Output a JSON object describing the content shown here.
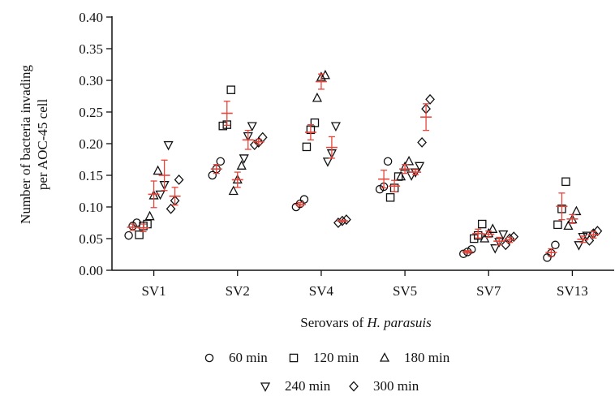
{
  "chart_data": {
    "type": "scatter",
    "ylabel_line1": "Number of bacteria invading",
    "ylabel_line2": "per AOC-45 cell",
    "xlabel_prefix": "Serovars of",
    "xlabel_italic": "H. parasuis",
    "categories": [
      "SV1",
      "SV2",
      "SV4",
      "SV5",
      "SV7",
      "SV13"
    ],
    "ylim": [
      0,
      0.4
    ],
    "yticks": [
      "0.00",
      "0.05",
      "0.10",
      "0.15",
      "0.20",
      "0.25",
      "0.30",
      "0.35",
      "0.40"
    ],
    "grid": false,
    "legend_position": "bottom",
    "mean_error_color": "#e8443a",
    "series": [
      {
        "name": "60 min",
        "marker": "circle",
        "values": [
          [
            0.055,
            0.07,
            0.075
          ],
          [
            0.15,
            0.16,
            0.172
          ],
          [
            0.1,
            0.105,
            0.112
          ],
          [
            0.128,
            0.132,
            0.172
          ],
          [
            0.026,
            0.029,
            0.033
          ],
          [
            0.02,
            0.027,
            0.04
          ]
        ],
        "mean": [
          0.068,
          0.16,
          0.104,
          0.144,
          0.029,
          0.028
        ],
        "err": [
          0.005,
          0.007,
          0.003,
          0.014,
          0.002,
          0.006
        ]
      },
      {
        "name": "120 min",
        "marker": "square",
        "values": [
          [
            0.056,
            0.07,
            0.073
          ],
          [
            0.228,
            0.23,
            0.285
          ],
          [
            0.195,
            0.222,
            0.233
          ],
          [
            0.115,
            0.13,
            0.148
          ],
          [
            0.05,
            0.055,
            0.073
          ],
          [
            0.072,
            0.097,
            0.14
          ]
        ],
        "mean": [
          0.067,
          0.248,
          0.218,
          0.133,
          0.058,
          0.101
        ],
        "err": [
          0.006,
          0.019,
          0.012,
          0.009,
          0.007,
          0.021
        ]
      },
      {
        "name": "180 min",
        "marker": "triangle-up",
        "values": [
          [
            0.085,
            0.118,
            0.157
          ],
          [
            0.125,
            0.143,
            0.165
          ],
          [
            0.272,
            0.305,
            0.308
          ],
          [
            0.148,
            0.163,
            0.172
          ],
          [
            0.05,
            0.058,
            0.065
          ],
          [
            0.07,
            0.08,
            0.093
          ]
        ],
        "mean": [
          0.12,
          0.143,
          0.298,
          0.16,
          0.057,
          0.081
        ],
        "err": [
          0.021,
          0.012,
          0.012,
          0.007,
          0.005,
          0.007
        ]
      },
      {
        "name": "240 min",
        "marker": "triangle-down",
        "values": [
          [
            0.12,
            0.135,
            0.198
          ],
          [
            0.177,
            0.212,
            0.228
          ],
          [
            0.172,
            0.185,
            0.228
          ],
          [
            0.15,
            0.155,
            0.165
          ],
          [
            0.035,
            0.045,
            0.057
          ],
          [
            0.04,
            0.053,
            0.055
          ]
        ],
        "mean": [
          0.15,
          0.206,
          0.194,
          0.155,
          0.046,
          0.049
        ],
        "err": [
          0.024,
          0.015,
          0.017,
          0.004,
          0.006,
          0.005
        ]
      },
      {
        "name": "300 min",
        "marker": "diamond",
        "values": [
          [
            0.097,
            0.11,
            0.143
          ],
          [
            0.198,
            0.202,
            0.21
          ],
          [
            0.075,
            0.078,
            0.08
          ],
          [
            0.202,
            0.255,
            0.27
          ],
          [
            0.04,
            0.05,
            0.053
          ],
          [
            0.047,
            0.058,
            0.062
          ]
        ],
        "mean": [
          0.117,
          0.203,
          0.078,
          0.242,
          0.048,
          0.056
        ],
        "err": [
          0.014,
          0.004,
          0.001,
          0.021,
          0.004,
          0.005
        ]
      }
    ]
  }
}
